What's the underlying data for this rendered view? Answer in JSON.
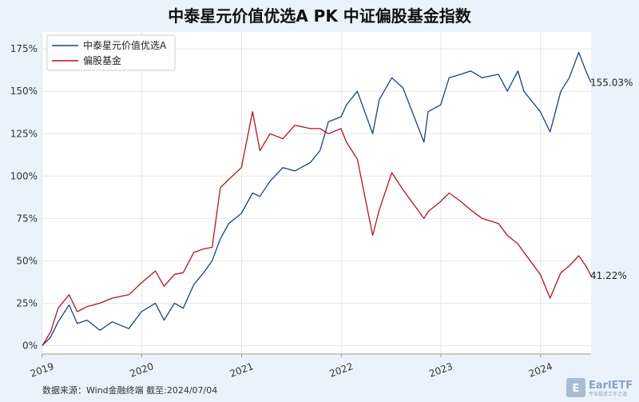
{
  "chart_data": {
    "type": "line",
    "title": "中泰星元价值优选A PK 中证偏股基金指数",
    "xlabel": "",
    "ylabel": "",
    "x_range": [
      "2019-01-02",
      "2024-07-04"
    ],
    "x_ticks": [
      "2019",
      "2020",
      "2021",
      "2022",
      "2023",
      "2024"
    ],
    "ylim": [
      -0.05,
      1.85
    ],
    "y_ticks": [
      {
        "value": 0.0,
        "label": "0%"
      },
      {
        "value": 0.25,
        "label": "25%"
      },
      {
        "value": 0.5,
        "label": "50%"
      },
      {
        "value": 0.75,
        "label": "75%"
      },
      {
        "value": 1.0,
        "label": "100%"
      },
      {
        "value": 1.25,
        "label": "125%"
      },
      {
        "value": 1.5,
        "label": "150%"
      },
      {
        "value": 1.75,
        "label": "175%"
      }
    ],
    "grid": true,
    "legend_position": "top-left",
    "series": [
      {
        "name": "中泰星元价值优选A",
        "color": "#1b3f8b",
        "end_label": "155.03%",
        "points": [
          [
            "2019-01-02",
            0.0
          ],
          [
            "2019-02-01",
            0.05
          ],
          [
            "2019-03-01",
            0.14
          ],
          [
            "2019-04-10",
            0.24
          ],
          [
            "2019-05-10",
            0.13
          ],
          [
            "2019-06-15",
            0.15
          ],
          [
            "2019-08-01",
            0.09
          ],
          [
            "2019-09-15",
            0.14
          ],
          [
            "2019-11-15",
            0.1
          ],
          [
            "2019-12-31",
            0.2
          ],
          [
            "2020-02-20",
            0.25
          ],
          [
            "2020-03-23",
            0.15
          ],
          [
            "2020-04-30",
            0.25
          ],
          [
            "2020-06-01",
            0.22
          ],
          [
            "2020-07-10",
            0.36
          ],
          [
            "2020-08-15",
            0.43
          ],
          [
            "2020-09-15",
            0.5
          ],
          [
            "2020-10-15",
            0.63
          ],
          [
            "2020-11-15",
            0.72
          ],
          [
            "2020-12-31",
            0.78
          ],
          [
            "2021-02-10",
            0.9
          ],
          [
            "2021-03-09",
            0.88
          ],
          [
            "2021-04-15",
            0.97
          ],
          [
            "2021-06-01",
            1.05
          ],
          [
            "2021-07-15",
            1.03
          ],
          [
            "2021-09-10",
            1.08
          ],
          [
            "2021-10-15",
            1.15
          ],
          [
            "2021-11-15",
            1.32
          ],
          [
            "2021-12-31",
            1.35
          ],
          [
            "2022-01-20",
            1.42
          ],
          [
            "2022-03-01",
            1.5
          ],
          [
            "2022-04-26",
            1.25
          ],
          [
            "2022-05-20",
            1.45
          ],
          [
            "2022-07-05",
            1.58
          ],
          [
            "2022-08-15",
            1.52
          ],
          [
            "2022-10-31",
            1.2
          ],
          [
            "2022-11-15",
            1.38
          ],
          [
            "2022-12-31",
            1.42
          ],
          [
            "2023-01-31",
            1.58
          ],
          [
            "2023-03-15",
            1.6
          ],
          [
            "2023-04-20",
            1.62
          ],
          [
            "2023-06-01",
            1.58
          ],
          [
            "2023-07-31",
            1.6
          ],
          [
            "2023-09-01",
            1.5
          ],
          [
            "2023-10-10",
            1.62
          ],
          [
            "2023-11-01",
            1.5
          ],
          [
            "2023-12-31",
            1.38
          ],
          [
            "2024-02-05",
            1.26
          ],
          [
            "2024-03-15",
            1.5
          ],
          [
            "2024-04-15",
            1.58
          ],
          [
            "2024-05-20",
            1.73
          ],
          [
            "2024-06-15",
            1.62
          ],
          [
            "2024-07-04",
            1.5503
          ]
        ]
      },
      {
        "name": "偏股基金",
        "color": "#b0161e",
        "end_label": "41.22%",
        "points": [
          [
            "2019-01-02",
            0.0
          ],
          [
            "2019-02-01",
            0.08
          ],
          [
            "2019-03-01",
            0.22
          ],
          [
            "2019-04-10",
            0.3
          ],
          [
            "2019-05-10",
            0.2
          ],
          [
            "2019-06-15",
            0.23
          ],
          [
            "2019-08-01",
            0.25
          ],
          [
            "2019-09-15",
            0.28
          ],
          [
            "2019-11-15",
            0.3
          ],
          [
            "2019-12-31",
            0.37
          ],
          [
            "2020-02-20",
            0.44
          ],
          [
            "2020-03-23",
            0.35
          ],
          [
            "2020-04-30",
            0.42
          ],
          [
            "2020-06-01",
            0.43
          ],
          [
            "2020-07-10",
            0.55
          ],
          [
            "2020-08-15",
            0.57
          ],
          [
            "2020-09-15",
            0.58
          ],
          [
            "2020-10-15",
            0.93
          ],
          [
            "2020-11-15",
            0.98
          ],
          [
            "2020-12-31",
            1.05
          ],
          [
            "2021-02-10",
            1.38
          ],
          [
            "2021-03-09",
            1.15
          ],
          [
            "2021-04-15",
            1.25
          ],
          [
            "2021-06-01",
            1.22
          ],
          [
            "2021-07-15",
            1.3
          ],
          [
            "2021-09-10",
            1.28
          ],
          [
            "2021-10-15",
            1.28
          ],
          [
            "2021-11-15",
            1.25
          ],
          [
            "2021-12-31",
            1.28
          ],
          [
            "2022-01-20",
            1.2
          ],
          [
            "2022-03-01",
            1.1
          ],
          [
            "2022-04-26",
            0.65
          ],
          [
            "2022-05-20",
            0.8
          ],
          [
            "2022-07-05",
            1.02
          ],
          [
            "2022-08-15",
            0.92
          ],
          [
            "2022-10-31",
            0.75
          ],
          [
            "2022-11-15",
            0.79
          ],
          [
            "2022-12-31",
            0.85
          ],
          [
            "2023-01-31",
            0.9
          ],
          [
            "2023-03-15",
            0.85
          ],
          [
            "2023-04-20",
            0.8
          ],
          [
            "2023-06-01",
            0.75
          ],
          [
            "2023-07-31",
            0.72
          ],
          [
            "2023-09-01",
            0.65
          ],
          [
            "2023-10-10",
            0.6
          ],
          [
            "2023-11-01",
            0.55
          ],
          [
            "2023-12-31",
            0.42
          ],
          [
            "2024-02-05",
            0.28
          ],
          [
            "2024-03-15",
            0.43
          ],
          [
            "2024-04-15",
            0.47
          ],
          [
            "2024-05-20",
            0.53
          ],
          [
            "2024-06-15",
            0.47
          ],
          [
            "2024-07-04",
            0.4122
          ]
        ]
      }
    ]
  },
  "footer": {
    "source": "数据来源：Wind金融终端 截至:2024/07/04"
  },
  "logo": {
    "name": "EarlETF",
    "sub": "专业投资工作之道"
  }
}
